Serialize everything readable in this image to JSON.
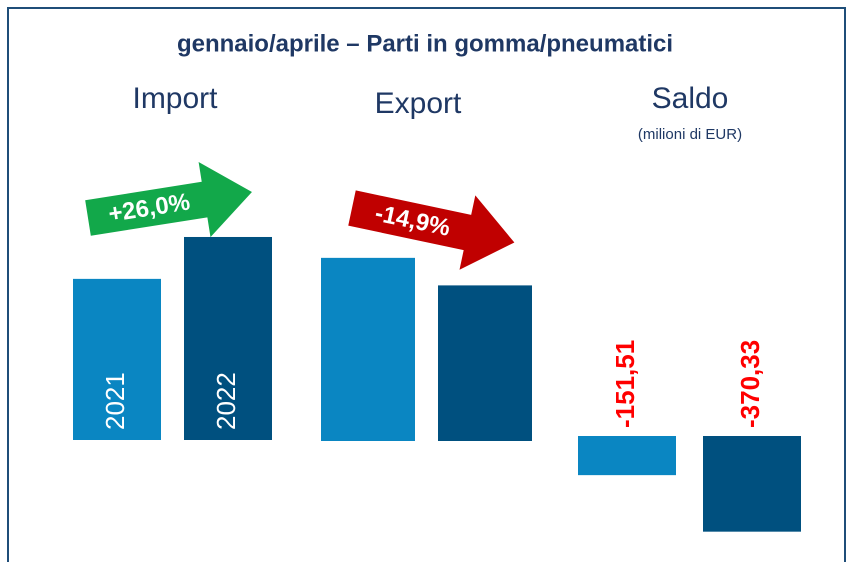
{
  "title": "gennaio/aprile – Parti in gomma/pneumatici",
  "chart_data": [
    {
      "type": "bar",
      "title": "Import",
      "categories": [
        "2021",
        "2022"
      ],
      "values": [
        590,
        743.4
      ],
      "colors": [
        "#0a86c2",
        "#00507f"
      ],
      "annotation": "+26,0%",
      "annotation_color": "#12a84a",
      "ylim": [
        0,
        1245
      ]
    },
    {
      "type": "bar",
      "title": "Export",
      "categories": [
        null,
        null
      ],
      "values": [
        439,
        373
      ],
      "colors": [
        "#0a86c2",
        "#00507f"
      ],
      "annotation": "-14,9%",
      "annotation_color": "#c00000",
      "ylim": [
        0,
        815
      ]
    },
    {
      "type": "bar",
      "title": "Saldo",
      "subtitle": "(milioni di EUR)",
      "categories": [
        null,
        null
      ],
      "values": [
        -151.51,
        -370.33
      ],
      "value_labels": [
        "-151,51",
        "-370,33"
      ],
      "value_label_color": "#ff0000",
      "colors": [
        "#0a86c2",
        "#00507f"
      ],
      "ylim": [
        -480,
        0
      ]
    }
  ]
}
